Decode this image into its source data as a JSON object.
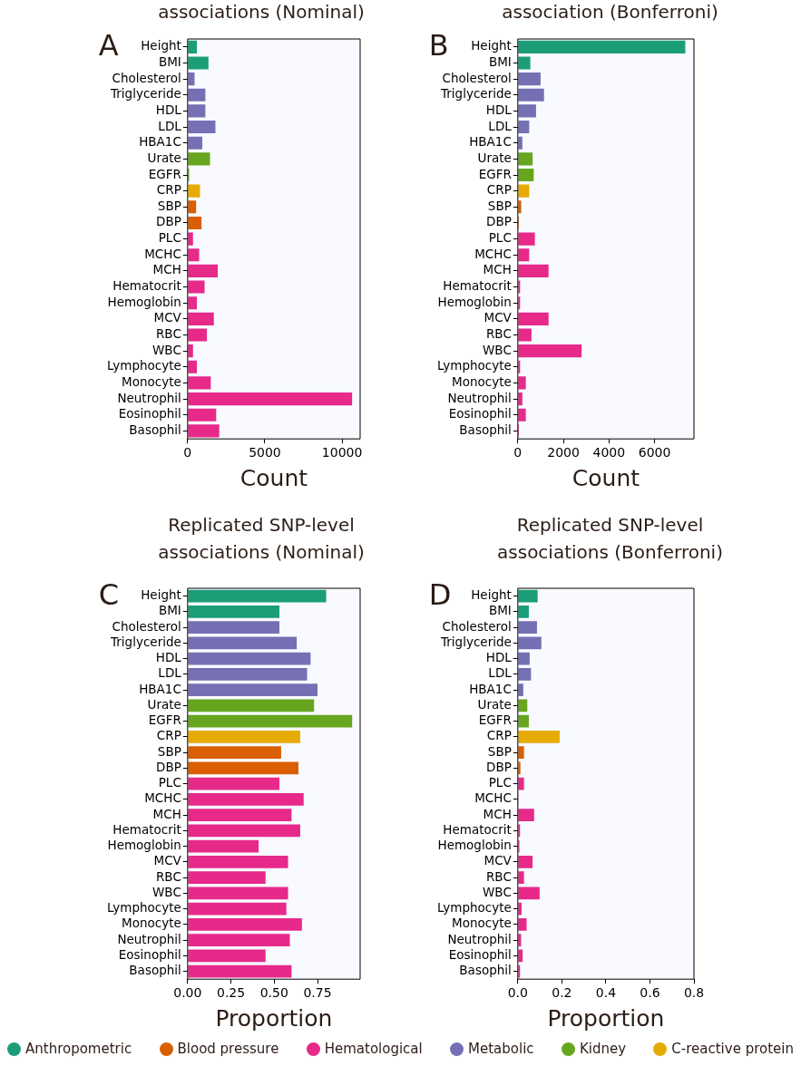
{
  "chart_data": [
    {
      "type": "bar",
      "orientation": "horizontal",
      "stacked": true,
      "title": "associations (Nominal)",
      "xlabel": "Count",
      "annotations": [
        "A"
      ],
      "grid": false,
      "xlim": [
        0,
        11170
      ],
      "xticks": [
        0,
        5000,
        10000
      ],
      "categories": [
        "Height",
        "BMI",
        "Cholesterol",
        "Triglyceride",
        "HDL",
        "LDL",
        "HBA1C",
        "Urate",
        "EGFR",
        "CRP",
        "SBP",
        "DBP",
        "PLC",
        "MCHC",
        "MCH",
        "Hematocrit",
        "Hemoglobin",
        "MCV",
        "RBC",
        "WBC",
        "Lymphocyte",
        "Monocyte",
        "Neutrophil",
        "Eosinophil",
        "Basophil"
      ],
      "series": [
        {
          "color": "#1b9e77",
          "values": [
            600,
            1350,
            null,
            null,
            null,
            null,
            null,
            null,
            null,
            null,
            null,
            null,
            null,
            null,
            null,
            null,
            null,
            null,
            null,
            null,
            null,
            null,
            null,
            null,
            null
          ]
        },
        {
          "color": "#d95f02",
          "values": [
            null,
            null,
            null,
            null,
            null,
            null,
            null,
            null,
            null,
            null,
            550,
            900,
            null,
            null,
            null,
            null,
            null,
            null,
            null,
            null,
            null,
            null,
            null,
            null,
            null
          ]
        },
        {
          "color": "#e7298a",
          "values": [
            null,
            null,
            null,
            null,
            null,
            null,
            null,
            null,
            null,
            null,
            null,
            null,
            350,
            750,
            1950,
            1100,
            600,
            1700,
            1250,
            350,
            600,
            1500,
            10650,
            1850,
            2050
          ]
        },
        {
          "color": "#7570b3",
          "values": [
            null,
            null,
            450,
            1150,
            1150,
            1800,
            950,
            null,
            null,
            null,
            null,
            null,
            null,
            null,
            null,
            null,
            null,
            null,
            null,
            null,
            null,
            null,
            null,
            null,
            null
          ]
        },
        {
          "color": "#66a61e",
          "values": [
            null,
            null,
            null,
            null,
            null,
            null,
            null,
            1450,
            100,
            null,
            null,
            null,
            null,
            null,
            null,
            null,
            null,
            null,
            null,
            null,
            null,
            null,
            null,
            null,
            null
          ]
        },
        {
          "color": "#e6ab02",
          "values": [
            null,
            null,
            null,
            null,
            null,
            null,
            null,
            null,
            null,
            800,
            null,
            null,
            null,
            null,
            null,
            null,
            null,
            null,
            null,
            null,
            null,
            null,
            null,
            null,
            null
          ]
        }
      ]
    },
    {
      "type": "bar",
      "orientation": "horizontal",
      "stacked": true,
      "title": "association (Bonferroni)",
      "xlabel": "Count",
      "annotations": [
        "B"
      ],
      "grid": false,
      "xlim": [
        0,
        7730
      ],
      "xticks": [
        0,
        2000,
        4000,
        6000
      ],
      "categories": [
        "Height",
        "BMI",
        "Cholesterol",
        "Triglyceride",
        "HDL",
        "LDL",
        "HBA1C",
        "Urate",
        "EGFR",
        "CRP",
        "SBP",
        "DBP",
        "PLC",
        "MCHC",
        "MCH",
        "Hematocrit",
        "Hemoglobin",
        "MCV",
        "RBC",
        "WBC",
        "Lymphocyte",
        "Monocyte",
        "Neutrophil",
        "Eosinophil",
        "Basophil"
      ],
      "series": [
        {
          "color": "#1b9e77",
          "values": [
            7350,
            550,
            null,
            null,
            null,
            null,
            null,
            null,
            null,
            null,
            null,
            null,
            null,
            null,
            null,
            null,
            null,
            null,
            null,
            null,
            null,
            null,
            null,
            null,
            null
          ]
        },
        {
          "color": "#d95f02",
          "values": [
            null,
            null,
            null,
            null,
            null,
            null,
            null,
            null,
            null,
            null,
            150,
            50,
            null,
            null,
            null,
            null,
            null,
            null,
            null,
            null,
            null,
            null,
            null,
            null,
            null
          ]
        },
        {
          "color": "#e7298a",
          "values": [
            null,
            null,
            null,
            null,
            null,
            null,
            null,
            null,
            null,
            null,
            null,
            null,
            750,
            500,
            1350,
            100,
            100,
            1350,
            600,
            2800,
            100,
            350,
            200,
            350,
            50
          ]
        },
        {
          "color": "#7570b3",
          "values": [
            null,
            null,
            1000,
            1150,
            800,
            500,
            200,
            null,
            null,
            null,
            null,
            null,
            null,
            null,
            null,
            null,
            null,
            null,
            null,
            null,
            null,
            null,
            null,
            null,
            null
          ]
        },
        {
          "color": "#66a61e",
          "values": [
            null,
            null,
            null,
            null,
            null,
            null,
            null,
            650,
            700,
            null,
            null,
            null,
            null,
            null,
            null,
            null,
            null,
            null,
            null,
            null,
            null,
            null,
            null,
            null,
            null
          ]
        },
        {
          "color": "#e6ab02",
          "values": [
            null,
            null,
            null,
            null,
            null,
            null,
            null,
            null,
            null,
            500,
            null,
            null,
            null,
            null,
            null,
            null,
            null,
            null,
            null,
            null,
            null,
            null,
            null,
            null,
            null
          ]
        }
      ]
    },
    {
      "type": "bar",
      "orientation": "horizontal",
      "stacked": true,
      "title": "Replicated SNP-level associations (Nominal)",
      "xlabel": "Proportion",
      "annotations": [
        "C"
      ],
      "grid": false,
      "xlim": [
        0,
        0.996
      ],
      "xticks": [
        {
          "value": 0,
          "label": "0.00"
        },
        {
          "value": 0.25,
          "label": "0.25"
        },
        {
          "value": 0.5,
          "label": "0.50"
        },
        {
          "value": 0.75,
          "label": "0.75"
        }
      ],
      "categories": [
        "Height",
        "BMI",
        "Cholesterol",
        "Triglyceride",
        "HDL",
        "LDL",
        "HBA1C",
        "Urate",
        "EGFR",
        "CRP",
        "SBP",
        "DBP",
        "PLC",
        "MCHC",
        "MCH",
        "Hematocrit",
        "Hemoglobin",
        "MCV",
        "RBC",
        "WBC",
        "Lymphocyte",
        "Monocyte",
        "Neutrophil",
        "Eosinophil",
        "Basophil"
      ],
      "series": [
        {
          "color": "#1b9e77",
          "values": [
            0.8,
            0.53,
            null,
            null,
            null,
            null,
            null,
            null,
            null,
            null,
            null,
            null,
            null,
            null,
            null,
            null,
            null,
            null,
            null,
            null,
            null,
            null,
            null,
            null,
            null
          ]
        },
        {
          "color": "#d95f02",
          "values": [
            null,
            null,
            null,
            null,
            null,
            null,
            null,
            null,
            null,
            null,
            0.54,
            0.64,
            null,
            null,
            null,
            null,
            null,
            null,
            null,
            null,
            null,
            null,
            null,
            null,
            null
          ]
        },
        {
          "color": "#e7298a",
          "values": [
            null,
            null,
            null,
            null,
            null,
            null,
            null,
            null,
            null,
            null,
            null,
            null,
            0.53,
            0.67,
            0.6,
            0.65,
            0.41,
            0.58,
            0.45,
            0.58,
            0.57,
            0.66,
            0.59,
            0.45,
            0.6
          ]
        },
        {
          "color": "#7570b3",
          "values": [
            null,
            null,
            0.53,
            0.63,
            0.71,
            0.69,
            0.75,
            null,
            null,
            null,
            null,
            null,
            null,
            null,
            null,
            null,
            null,
            null,
            null,
            null,
            null,
            null,
            null,
            null,
            null
          ]
        },
        {
          "color": "#66a61e",
          "values": [
            null,
            null,
            null,
            null,
            null,
            null,
            null,
            0.73,
            0.95,
            null,
            null,
            null,
            null,
            null,
            null,
            null,
            null,
            null,
            null,
            null,
            null,
            null,
            null,
            null,
            null
          ]
        },
        {
          "color": "#e6ab02",
          "values": [
            null,
            null,
            null,
            null,
            null,
            null,
            null,
            null,
            null,
            0.65,
            null,
            null,
            null,
            null,
            null,
            null,
            null,
            null,
            null,
            null,
            null,
            null,
            null,
            null,
            null
          ]
        }
      ]
    },
    {
      "type": "bar",
      "orientation": "horizontal",
      "stacked": true,
      "title": "Replicated SNP-level associations (Bonferroni)",
      "xlabel": "Proportion",
      "annotations": [
        "D"
      ],
      "grid": false,
      "legend": "bottom",
      "xlim": [
        0,
        0.8
      ],
      "xticks": [
        {
          "value": 0,
          "label": "0.0"
        },
        0.2,
        0.4,
        0.6,
        0.8
      ],
      "categories": [
        "Height",
        "BMI",
        "Cholesterol",
        "Triglyceride",
        "HDL",
        "LDL",
        "HBA1C",
        "Urate",
        "EGFR",
        "CRP",
        "SBP",
        "DBP",
        "PLC",
        "MCHC",
        "MCH",
        "Hematocrit",
        "Hemoglobin",
        "MCV",
        "RBC",
        "WBC",
        "Lymphocyte",
        "Monocyte",
        "Neutrophil",
        "Eosinophil",
        "Basophil"
      ],
      "series": [
        {
          "name": "Anthropometric",
          "color": "#1b9e77",
          "values": [
            0.09,
            0.05,
            null,
            null,
            null,
            null,
            null,
            null,
            null,
            null,
            null,
            null,
            null,
            null,
            null,
            null,
            null,
            null,
            null,
            null,
            null,
            null,
            null,
            null,
            null
          ]
        },
        {
          "name": "Blood pressure",
          "color": "#d95f02",
          "values": [
            null,
            null,
            null,
            null,
            null,
            null,
            null,
            null,
            null,
            null,
            0.028,
            0.012,
            null,
            null,
            null,
            null,
            null,
            null,
            null,
            null,
            null,
            null,
            null,
            null,
            null
          ]
        },
        {
          "name": "Hematological",
          "color": "#e7298a",
          "values": [
            null,
            null,
            null,
            null,
            null,
            null,
            null,
            null,
            null,
            null,
            null,
            null,
            0.028,
            0.003,
            0.074,
            0.01,
            0.007,
            0.067,
            0.028,
            0.099,
            0.017,
            0.04,
            0.015,
            0.022,
            0.01
          ]
        },
        {
          "name": "Metabolic",
          "color": "#7570b3",
          "values": [
            null,
            null,
            0.087,
            0.107,
            0.054,
            0.06,
            0.025,
            null,
            null,
            null,
            null,
            null,
            null,
            null,
            null,
            null,
            null,
            null,
            null,
            null,
            null,
            null,
            null,
            null,
            null
          ]
        },
        {
          "name": "Kidney",
          "color": "#66a61e",
          "values": [
            null,
            null,
            null,
            null,
            null,
            null,
            null,
            0.043,
            0.05,
            null,
            null,
            null,
            null,
            null,
            null,
            null,
            null,
            null,
            null,
            null,
            null,
            null,
            null,
            null,
            null
          ]
        },
        {
          "name": "C-reactive protein",
          "color": "#e6ab02",
          "values": [
            null,
            null,
            null,
            null,
            null,
            null,
            null,
            null,
            null,
            0.19,
            null,
            null,
            null,
            null,
            null,
            null,
            null,
            null,
            null,
            null,
            null,
            null,
            null,
            null,
            null
          ]
        }
      ]
    }
  ]
}
